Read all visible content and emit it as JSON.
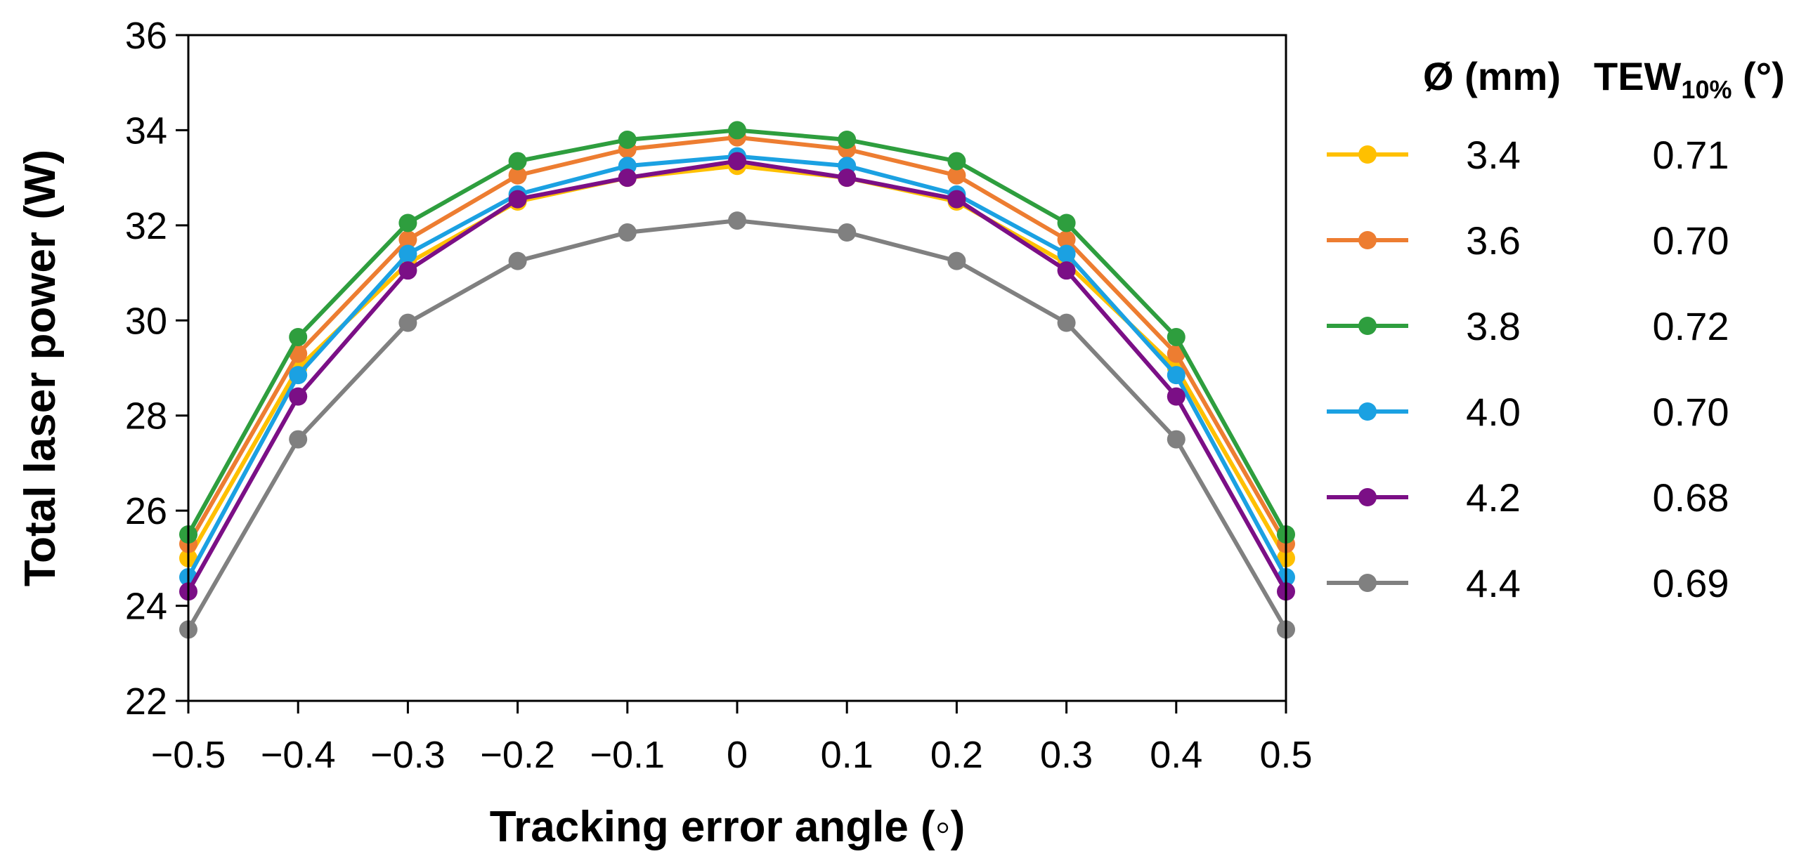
{
  "chart_data": {
    "type": "line",
    "xlabel": "Tracking error angle (◦)",
    "ylabel": "Total laser power (W)",
    "xlim": [
      -0.5,
      0.5
    ],
    "ylim": [
      22,
      36
    ],
    "x": [
      -0.5,
      -0.4,
      -0.3,
      -0.2,
      -0.1,
      0,
      0.1,
      0.2,
      0.3,
      0.4,
      0.5
    ],
    "x_tick_labels": [
      "−0.5",
      "−0.4",
      "−0.3",
      "−0.2",
      "−0.1",
      "0",
      "0.1",
      "0.2",
      "0.3",
      "0.4",
      "0.5"
    ],
    "y_ticks": [
      22,
      24,
      26,
      28,
      30,
      32,
      34,
      36
    ],
    "y_tick_labels": [
      "22",
      "24",
      "26",
      "28",
      "30",
      "32",
      "34",
      "36"
    ],
    "grid": false,
    "legend_position": "right",
    "legend_headers": {
      "diameter_main": "Ø (mm)",
      "tew_main": "TEW",
      "tew_sub": "10%",
      "tew_unit": " (°)"
    },
    "series": [
      {
        "name": "3.4",
        "tew": "0.71",
        "color": "#FFC000",
        "values": [
          25.0,
          29.0,
          31.2,
          32.5,
          33.0,
          33.25,
          33.0,
          32.5,
          31.2,
          29.0,
          25.0
        ]
      },
      {
        "name": "3.6",
        "tew": "0.70",
        "color": "#ED7D31",
        "values": [
          25.3,
          29.3,
          31.7,
          33.05,
          33.6,
          33.85,
          33.6,
          33.05,
          31.7,
          29.3,
          25.3
        ]
      },
      {
        "name": "3.8",
        "tew": "0.72",
        "color": "#2E9E3E",
        "values": [
          25.5,
          29.65,
          32.05,
          33.35,
          33.8,
          34.0,
          33.8,
          33.35,
          32.05,
          29.65,
          25.5
        ]
      },
      {
        "name": "4.0",
        "tew": "0.70",
        "color": "#1BA1E2",
        "values": [
          24.6,
          28.85,
          31.4,
          32.65,
          33.25,
          33.45,
          33.25,
          32.65,
          31.4,
          28.85,
          24.6
        ]
      },
      {
        "name": "4.2",
        "tew": "0.68",
        "color": "#7B0F86",
        "values": [
          24.3,
          28.4,
          31.05,
          32.55,
          33.0,
          33.35,
          33.0,
          32.55,
          31.05,
          28.4,
          24.3
        ]
      },
      {
        "name": "4.4",
        "tew": "0.69",
        "color": "#808080",
        "values": [
          23.5,
          27.5,
          29.95,
          31.25,
          31.85,
          32.1,
          31.85,
          31.25,
          29.95,
          27.5,
          23.5
        ]
      }
    ]
  }
}
